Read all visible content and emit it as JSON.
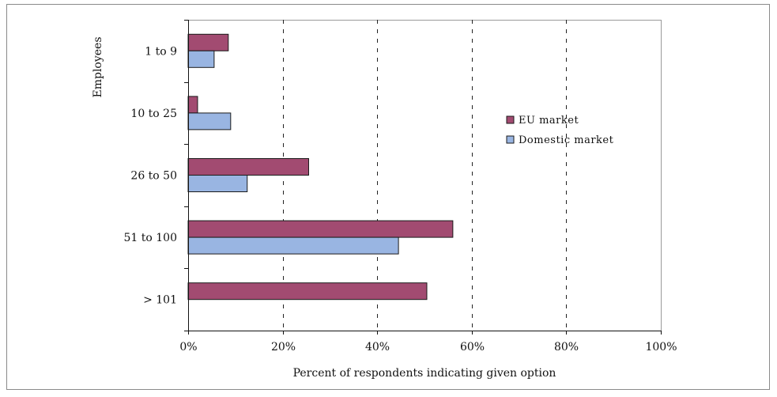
{
  "chart_data": {
    "type": "bar",
    "orientation": "horizontal",
    "title": "",
    "xlabel": "Percent of respondents indicating given option",
    "ylabel": "Employees",
    "categories": [
      "1 to 9",
      "10 to 25",
      "26 to 50",
      "51 to 100",
      "> 101"
    ],
    "series": [
      {
        "name": "EU market",
        "values": [
          8.5,
          2,
          25.5,
          56,
          50.5
        ],
        "color": "#A24B71"
      },
      {
        "name": "Domestic market",
        "values": [
          5.5,
          9,
          12.5,
          44.5,
          0
        ],
        "color": "#99B5E2"
      }
    ],
    "xlim": [
      0,
      100
    ],
    "xticks": [
      0,
      20,
      40,
      60,
      80,
      100
    ],
    "xtick_labels": [
      "0%",
      "20%",
      "40%",
      "60%",
      "80%",
      "100%"
    ],
    "grid": "vertical dashed",
    "legend_position": "right",
    "frame_color": "#888888"
  }
}
